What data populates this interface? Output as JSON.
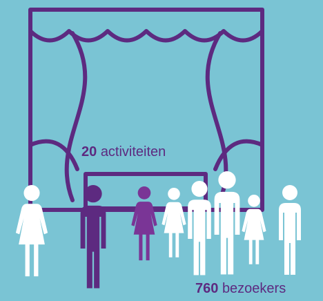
{
  "stats": [
    {
      "value": 20,
      "label": "activiteiten"
    },
    {
      "value": 760,
      "label": "bezoekers"
    }
  ]
}
